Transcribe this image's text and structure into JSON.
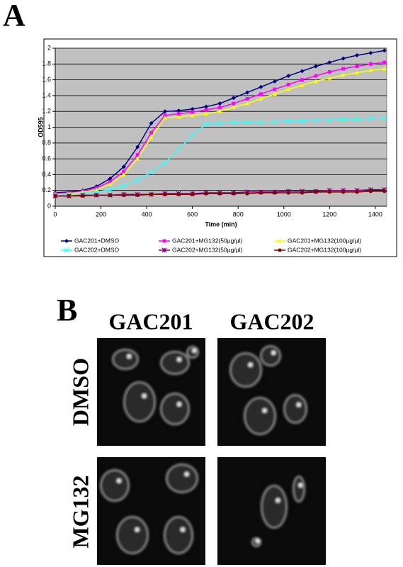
{
  "panel_labels": [
    "A",
    "B"
  ],
  "chart_data": {
    "type": "line",
    "x_label": "Time (min)",
    "y_label": "OD595",
    "x": [
      0,
      60,
      120,
      180,
      240,
      300,
      360,
      420,
      480,
      540,
      600,
      660,
      720,
      780,
      840,
      900,
      960,
      1020,
      1080,
      1140,
      1200,
      1260,
      1320,
      1380,
      1440
    ],
    "series": [
      {
        "name": "GAC201+DMSO",
        "color": "#000080",
        "marker": "diamond",
        "values": [
          0.17,
          0.18,
          0.2,
          0.25,
          0.35,
          0.5,
          0.75,
          1.05,
          1.2,
          1.21,
          1.23,
          1.26,
          1.3,
          1.37,
          1.44,
          1.51,
          1.58,
          1.65,
          1.71,
          1.77,
          1.82,
          1.87,
          1.91,
          1.94,
          1.97
        ]
      },
      {
        "name": "GAC201+MG132(50µg/µl)",
        "color": "#ff00ff",
        "marker": "square",
        "values": [
          0.16,
          0.17,
          0.19,
          0.23,
          0.31,
          0.44,
          0.65,
          0.93,
          1.15,
          1.17,
          1.19,
          1.22,
          1.25,
          1.3,
          1.36,
          1.42,
          1.48,
          1.54,
          1.6,
          1.65,
          1.7,
          1.74,
          1.77,
          1.8,
          1.82
        ]
      },
      {
        "name": "GAC201+MG132(100µg/µl)",
        "color": "#ffff00",
        "marker": "triangle",
        "values": [
          0.15,
          0.16,
          0.18,
          0.21,
          0.28,
          0.4,
          0.6,
          0.87,
          1.12,
          1.13,
          1.15,
          1.17,
          1.2,
          1.25,
          1.3,
          1.36,
          1.42,
          1.48,
          1.53,
          1.58,
          1.62,
          1.66,
          1.69,
          1.72,
          1.74
        ]
      },
      {
        "name": "GAC202+DMSO",
        "color": "#33ffff",
        "marker": "x",
        "values": [
          0.14,
          0.15,
          0.16,
          0.18,
          0.21,
          0.26,
          0.33,
          0.43,
          0.55,
          0.72,
          0.9,
          1.04,
          1.05,
          1.06,
          1.06,
          1.07,
          1.07,
          1.08,
          1.08,
          1.09,
          1.09,
          1.1,
          1.1,
          1.11,
          1.11
        ]
      },
      {
        "name": "GAC202+MG132(50µg/µl)",
        "color": "#800080",
        "marker": "star",
        "values": [
          0.13,
          0.13,
          0.14,
          0.14,
          0.14,
          0.15,
          0.15,
          0.15,
          0.16,
          0.16,
          0.16,
          0.17,
          0.17,
          0.17,
          0.18,
          0.18,
          0.18,
          0.19,
          0.19,
          0.19,
          0.2,
          0.2,
          0.2,
          0.21,
          0.21
        ]
      },
      {
        "name": "GAC202+MG132(100µg/µl)",
        "color": "#800000",
        "marker": "circle",
        "values": [
          0.13,
          0.13,
          0.13,
          0.14,
          0.14,
          0.14,
          0.14,
          0.15,
          0.15,
          0.15,
          0.15,
          0.16,
          0.16,
          0.16,
          0.16,
          0.17,
          0.17,
          0.17,
          0.17,
          0.18,
          0.18,
          0.18,
          0.18,
          0.19,
          0.19
        ]
      }
    ],
    "xlim": [
      0,
      1450
    ],
    "xticks": [
      0,
      200,
      400,
      600,
      800,
      1000,
      1200,
      1400
    ],
    "ylim": [
      0,
      2
    ],
    "yticks": [
      0,
      0.2,
      0.4,
      0.6,
      0.8,
      1,
      1.2,
      1.4,
      1.6,
      1.8,
      2
    ],
    "grid": true,
    "plot_background": "#c0c0c0"
  },
  "micrographs": {
    "columns": [
      "GAC201",
      "GAC202"
    ],
    "rows": [
      "DMSO",
      "MG132"
    ]
  }
}
